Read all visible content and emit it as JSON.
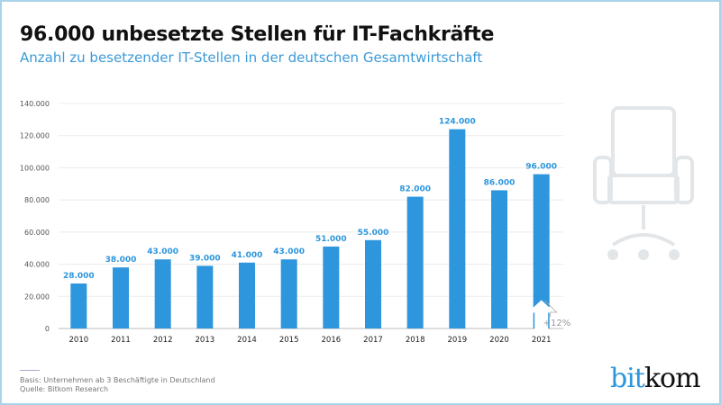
{
  "title": "96.000 unbesetzte Stellen für IT-Fachkräfte",
  "subtitle": "Anzahl zu besetzender IT-Stellen in der deutschen Gesamtwirtschaft",
  "chart_data": {
    "type": "bar",
    "categories": [
      "2010",
      "2011",
      "2012",
      "2013",
      "2014",
      "2015",
      "2016",
      "2017",
      "2018",
      "2019",
      "2020",
      "2021"
    ],
    "values": [
      28000,
      38000,
      43000,
      39000,
      41000,
      43000,
      51000,
      55000,
      82000,
      124000,
      86000,
      96000
    ],
    "data_labels": [
      "28.000",
      "38.000",
      "43.000",
      "39.000",
      "41.000",
      "43.000",
      "51.000",
      "55.000",
      "82.000",
      "124.000",
      "86.000",
      "96.000"
    ],
    "ylim": [
      0,
      140000
    ],
    "yticks": [
      0,
      20000,
      40000,
      60000,
      80000,
      100000,
      120000,
      140000
    ],
    "ytick_labels": [
      "0",
      "20.000",
      "40.000",
      "60.000",
      "80.000",
      "100.000",
      "120.000",
      "140.000"
    ],
    "grid": true,
    "bar_color": "#2d96dc",
    "annotation": "+12%"
  },
  "footer": {
    "basis": "Basis: Unternehmen ab 3 Beschäftigte in Deutschland",
    "source": "Quelle: Bitkom Research"
  },
  "logo": {
    "part1": "bit",
    "part2": "kom"
  },
  "icons": {
    "decoration": "office-chair-icon"
  }
}
